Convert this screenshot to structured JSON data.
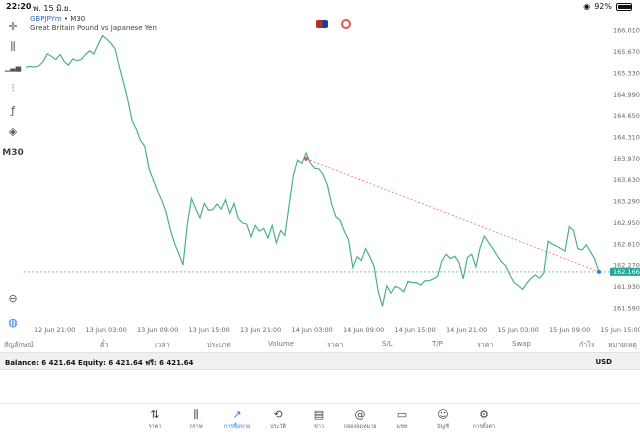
{
  "status": {
    "time": "22:20",
    "date": "พ. 15 มิ.ย.",
    "battery": "92%",
    "battery_fraction": 0.92
  },
  "chart": {
    "symbol": "GBPJPYm",
    "timeframe": "M30",
    "description": "Great Britain Pound vs Japanese Yen",
    "timeframe_label": "M30"
  },
  "chart_data": {
    "type": "line",
    "y_ticks": [
      "166.010",
      "165.670",
      "165.330",
      "164.990",
      "164.650",
      "164.310",
      "163.970",
      "163.630",
      "163.290",
      "162.950",
      "162.610",
      "162.270",
      "161.930",
      "161.590"
    ],
    "x_ticks": [
      "12 Jun 21:00",
      "13 Jun 03:00",
      "13 Jun 09:00",
      "13 Jun 15:00",
      "13 Jun 21:00",
      "14 Jun 03:00",
      "14 Jun 09:00",
      "14 Jun 15:00",
      "14 Jun 21:00",
      "15 Jun 03:00",
      "15 Jun 09:00",
      "15 Jun 15:00"
    ],
    "ylim": [
      161.42,
      166.18
    ],
    "price_label": "162.166",
    "series": [
      {
        "values": [
          165.43,
          165.44,
          165.43,
          165.45,
          165.52,
          165.64,
          165.6,
          165.55,
          165.63,
          165.52,
          165.46,
          165.56,
          165.53,
          165.55,
          165.63,
          165.69,
          165.64,
          165.79,
          165.93,
          165.88,
          165.81,
          165.72,
          165.43,
          165.18,
          164.9,
          164.58,
          164.44,
          164.26,
          164.17,
          163.81,
          163.64,
          163.46,
          163.31,
          163.12,
          162.84,
          162.62,
          162.46,
          162.28,
          162.93,
          163.34,
          163.17,
          163.03,
          163.26,
          163.15,
          163.16,
          163.25,
          163.17,
          163.32,
          163.1,
          163.26,
          163.02,
          162.95,
          162.93,
          162.73,
          162.91,
          162.82,
          162.86,
          162.71,
          162.91,
          162.63,
          162.83,
          162.75,
          163.24,
          163.71,
          163.95,
          163.9,
          164.06,
          163.9,
          163.82,
          163.81,
          163.72,
          163.55,
          163.25,
          163.05,
          162.99,
          162.82,
          162.68,
          162.24,
          162.41,
          162.35,
          162.54,
          162.41,
          162.26,
          161.85,
          161.62,
          161.95,
          161.83,
          161.94,
          161.91,
          161.85,
          162.02,
          162.0,
          162.0,
          161.96,
          162.03,
          162.03,
          162.06,
          162.1,
          162.35,
          162.45,
          162.38,
          162.42,
          162.32,
          162.06,
          162.4,
          162.45,
          162.25,
          162.56,
          162.74,
          162.64,
          162.54,
          162.43,
          162.33,
          162.27,
          162.12,
          162.0,
          161.95,
          161.89,
          161.99,
          162.07,
          162.12,
          162.07,
          162.15,
          162.66,
          162.61,
          162.58,
          162.54,
          162.5,
          162.89,
          162.83,
          162.54,
          162.52,
          162.6,
          162.49,
          162.37,
          162.17
        ]
      }
    ],
    "trendline": {
      "from": {
        "x_label": "14 Jun 03:00",
        "y": 163.97
      },
      "to": {
        "x_label": "15 Jun 15:00",
        "y": 162.17
      }
    },
    "current_price_line": 162.17,
    "grid": false
  },
  "toolbar": [
    {
      "name": "crosshair-icon",
      "glyph": "✛"
    },
    {
      "name": "chart-type-icon",
      "glyph": "⫼"
    },
    {
      "name": "indicator-icon",
      "glyph": "▁▃▅"
    },
    {
      "name": "settings-sliders-icon",
      "glyph": "⫶"
    },
    {
      "name": "function-icon",
      "glyph": "ƒ"
    },
    {
      "name": "objects-icon",
      "glyph": "◈"
    }
  ],
  "table": {
    "headers": [
      "สัญลักษณ์",
      "ตั๋ว",
      "เวลา",
      "ประเภท",
      "Volume",
      "ราคา",
      "S/L",
      "T/P",
      "ราคา",
      "Swap",
      "กำไร",
      "หมายเหตุ"
    ]
  },
  "balance": {
    "text": "Balance: 6 421.64 Equity: 6 421.64 ฟรี: 6 421.64",
    "currency": "USD"
  },
  "nav": [
    {
      "label": "ราคา",
      "glyph": "⇅"
    },
    {
      "label": "กราฟ",
      "glyph": "⫼"
    },
    {
      "label": "การซื้อขาย",
      "glyph": "📈"
    },
    {
      "label": "ประวัติ",
      "glyph": "⟲"
    },
    {
      "label": "ข่าว",
      "glyph": "▤"
    },
    {
      "label": "กล่องจดหมาย",
      "glyph": "@"
    },
    {
      "label": "แชท",
      "glyph": "▭"
    },
    {
      "label": "บัญชี",
      "glyph": "☺"
    },
    {
      "label": "การตั้งค่า",
      "glyph": "⚙"
    }
  ],
  "colors": {
    "line": "#4caf8a",
    "accent": "#2a7de1",
    "trend": "#e05a5a",
    "price_bg": "#26a69a"
  }
}
